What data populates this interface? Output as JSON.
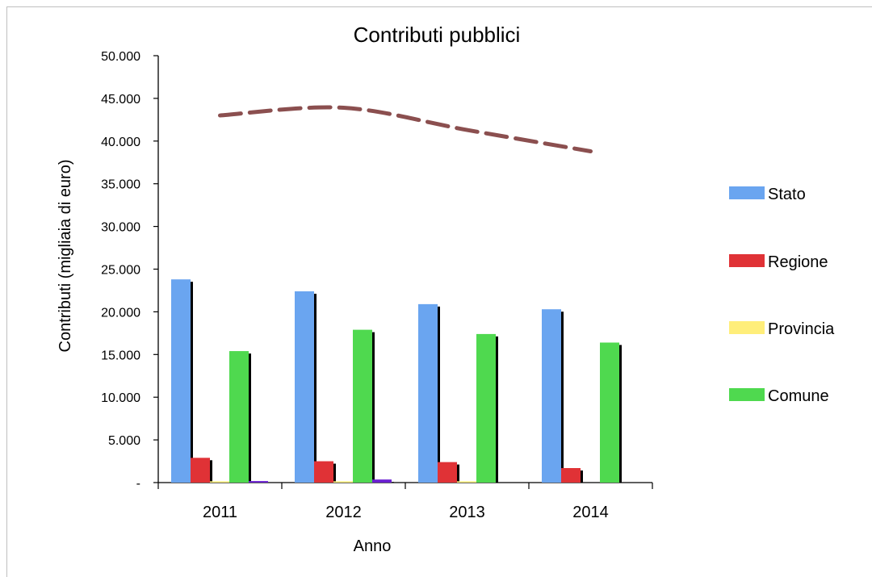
{
  "chart_data": {
    "type": "bar",
    "title": "Contributi pubblici",
    "xlabel": "Anno",
    "ylabel": "Contributi (migliaia di euro)",
    "categories": [
      "2011",
      "2012",
      "2013",
      "2014"
    ],
    "ylim": [
      0,
      50000
    ],
    "yticks": [
      0,
      5000,
      10000,
      15000,
      20000,
      25000,
      30000,
      35000,
      40000,
      45000,
      50000
    ],
    "ytick_labels": [
      "-",
      "5.000",
      "10.000",
      "15.000",
      "20.000",
      "25.000",
      "30.000",
      "35.000",
      "40.000",
      "45.000",
      "50.000"
    ],
    "series": [
      {
        "name": "Stato",
        "color": "#6aa5f0",
        "values": [
          23800,
          22400,
          20900,
          20300
        ]
      },
      {
        "name": "Regione",
        "color": "#e03236",
        "values": [
          2900,
          2500,
          2400,
          1700
        ]
      },
      {
        "name": "Provincia",
        "color": "#ffee7a",
        "values": [
          150,
          150,
          150,
          0
        ]
      },
      {
        "name": "Comune",
        "color": "#4fd94f",
        "values": [
          15400,
          17900,
          17400,
          16400
        ]
      }
    ],
    "extra_bars": {
      "color": "#6a1fd1",
      "values": [
        180,
        360,
        0,
        0
      ]
    },
    "total_line": {
      "color": "#8b4f4f",
      "style": "dashed",
      "values": [
        43000,
        43900,
        41300,
        38800
      ]
    },
    "grid": false,
    "legend_position": "right"
  }
}
